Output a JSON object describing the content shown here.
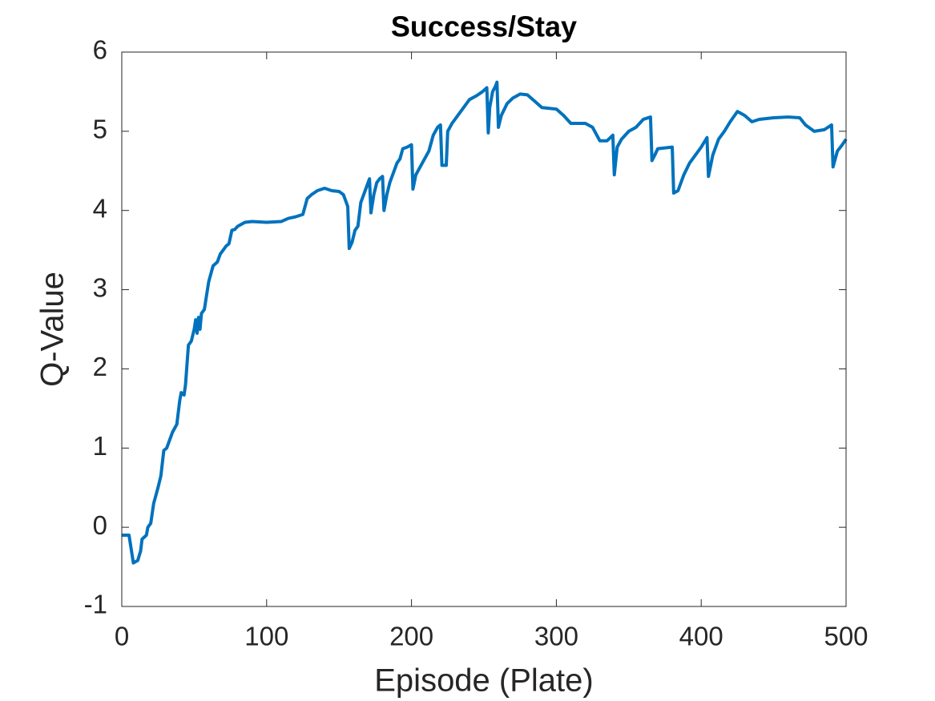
{
  "chart_data": {
    "type": "line",
    "title": "Success/Stay",
    "xlabel": "Episode (Plate)",
    "ylabel": "Q-Value",
    "color": "#0072bd",
    "grid": false,
    "xlim": [
      0,
      500
    ],
    "xticks": [
      0,
      100,
      200,
      300,
      400,
      500
    ],
    "ylim": [
      -1,
      6
    ],
    "yticks": [
      -1,
      0,
      1,
      2,
      3,
      4,
      5,
      6
    ],
    "x": [
      0,
      5,
      8,
      11,
      13,
      14,
      17,
      18,
      20,
      22,
      25,
      27,
      29,
      31,
      33,
      35,
      38,
      40,
      41,
      43,
      44,
      46,
      48,
      50,
      51,
      52,
      53,
      54,
      55,
      57,
      60,
      63,
      66,
      68,
      70,
      72,
      74,
      76,
      78,
      80,
      85,
      90,
      100,
      110,
      115,
      120,
      125,
      128,
      131,
      135,
      140,
      145,
      150,
      153,
      156,
      157,
      159,
      161,
      163,
      165,
      167,
      169,
      171,
      172,
      174,
      176,
      178,
      180,
      181,
      183,
      185,
      188,
      190,
      192,
      194,
      197,
      200,
      201,
      203,
      206,
      209,
      212,
      215,
      218,
      220,
      221,
      224,
      225,
      228,
      232,
      236,
      240,
      245,
      249,
      252,
      253,
      254,
      256,
      258,
      259,
      260,
      262,
      266,
      270,
      275,
      280,
      285,
      290,
      300,
      305,
      310,
      320,
      325,
      330,
      335,
      339,
      340,
      342,
      345,
      350,
      355,
      360,
      365,
      366,
      368,
      370,
      380,
      381,
      384,
      388,
      392,
      396,
      400,
      404,
      405,
      408,
      412,
      416,
      420,
      425,
      430,
      435,
      440,
      450,
      460,
      468,
      472,
      478,
      485,
      490,
      491,
      494,
      497,
      500
    ],
    "values": [
      -0.1,
      -0.1,
      -0.45,
      -0.42,
      -0.3,
      -0.15,
      -0.1,
      0.0,
      0.05,
      0.3,
      0.5,
      0.65,
      0.97,
      1.0,
      1.1,
      1.2,
      1.3,
      1.6,
      1.7,
      1.67,
      1.8,
      2.3,
      2.35,
      2.5,
      2.62,
      2.45,
      2.65,
      2.5,
      2.7,
      2.75,
      3.1,
      3.3,
      3.35,
      3.45,
      3.5,
      3.55,
      3.58,
      3.75,
      3.76,
      3.8,
      3.85,
      3.86,
      3.85,
      3.86,
      3.9,
      3.92,
      3.95,
      4.15,
      4.2,
      4.25,
      4.28,
      4.25,
      4.24,
      4.2,
      4.05,
      3.52,
      3.6,
      3.75,
      3.8,
      4.1,
      4.2,
      4.3,
      4.4,
      3.97,
      4.2,
      4.35,
      4.4,
      4.43,
      4.0,
      4.2,
      4.35,
      4.5,
      4.6,
      4.65,
      4.78,
      4.8,
      4.83,
      4.27,
      4.45,
      4.55,
      4.65,
      4.75,
      4.95,
      5.05,
      5.08,
      4.57,
      4.57,
      5.0,
      5.1,
      5.2,
      5.3,
      5.4,
      5.45,
      5.5,
      5.55,
      4.98,
      5.3,
      5.5,
      5.57,
      5.62,
      5.05,
      5.2,
      5.35,
      5.42,
      5.47,
      5.46,
      5.38,
      5.3,
      5.28,
      5.2,
      5.1,
      5.1,
      5.05,
      4.88,
      4.88,
      4.95,
      4.45,
      4.8,
      4.9,
      5.0,
      5.05,
      5.15,
      5.18,
      4.63,
      4.7,
      4.78,
      4.8,
      4.22,
      4.25,
      4.45,
      4.6,
      4.7,
      4.8,
      4.92,
      4.43,
      4.7,
      4.9,
      5.0,
      5.12,
      5.25,
      5.2,
      5.12,
      5.15,
      5.17,
      5.18,
      5.17,
      5.08,
      5.0,
      5.02,
      5.08,
      4.55,
      4.75,
      4.82,
      4.9
    ]
  }
}
